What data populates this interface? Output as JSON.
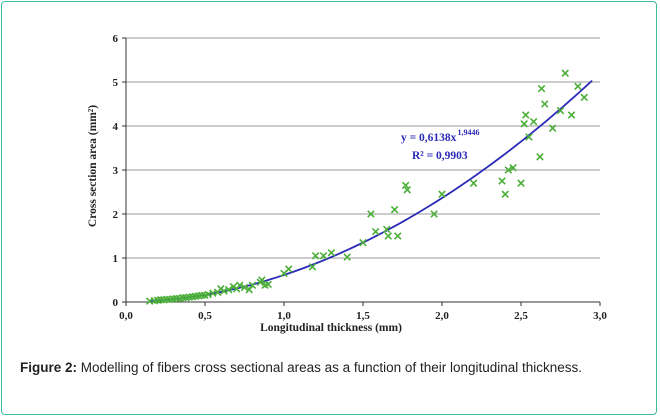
{
  "chart_data": {
    "type": "scatter",
    "xlabel": "Longitudinal thickness (mm)",
    "ylabel": "Cross section area (mm²)",
    "xlim": [
      0,
      3
    ],
    "ylim": [
      0,
      6
    ],
    "x_ticks": [
      "0,0",
      "0,5",
      "1,0",
      "1,5",
      "2,0",
      "2,5",
      "3,0"
    ],
    "y_ticks": [
      "0",
      "1",
      "2",
      "3",
      "4",
      "5",
      "6"
    ],
    "grid": "horizontal",
    "marker_color": "#4caf3a",
    "fit_color": "#2b2bb8",
    "fit": {
      "a": 0.6138,
      "b": 1.9446,
      "x_range": [
        0.15,
        2.95
      ]
    },
    "annotation": {
      "equation": "y = 0,6138x",
      "exponent": "1,9446",
      "r2": "R² = 0,9903"
    },
    "points": [
      [
        0.15,
        0.02
      ],
      [
        0.18,
        0.03
      ],
      [
        0.2,
        0.04
      ],
      [
        0.22,
        0.05
      ],
      [
        0.24,
        0.05
      ],
      [
        0.26,
        0.06
      ],
      [
        0.28,
        0.06
      ],
      [
        0.3,
        0.07
      ],
      [
        0.32,
        0.08
      ],
      [
        0.34,
        0.08
      ],
      [
        0.36,
        0.1
      ],
      [
        0.38,
        0.1
      ],
      [
        0.4,
        0.11
      ],
      [
        0.42,
        0.12
      ],
      [
        0.44,
        0.13
      ],
      [
        0.46,
        0.14
      ],
      [
        0.48,
        0.15
      ],
      [
        0.5,
        0.15
      ],
      [
        0.52,
        0.17
      ],
      [
        0.55,
        0.2
      ],
      [
        0.58,
        0.22
      ],
      [
        0.6,
        0.3
      ],
      [
        0.62,
        0.25
      ],
      [
        0.65,
        0.28
      ],
      [
        0.68,
        0.35
      ],
      [
        0.7,
        0.3
      ],
      [
        0.72,
        0.38
      ],
      [
        0.75,
        0.33
      ],
      [
        0.78,
        0.28
      ],
      [
        0.8,
        0.38
      ],
      [
        0.85,
        0.45
      ],
      [
        0.86,
        0.5
      ],
      [
        0.88,
        0.38
      ],
      [
        0.9,
        0.4
      ],
      [
        1.0,
        0.65
      ],
      [
        1.03,
        0.75
      ],
      [
        1.18,
        0.8
      ],
      [
        1.2,
        1.05
      ],
      [
        1.25,
        1.05
      ],
      [
        1.3,
        1.12
      ],
      [
        1.4,
        1.02
      ],
      [
        1.5,
        1.35
      ],
      [
        1.55,
        2.0
      ],
      [
        1.58,
        1.6
      ],
      [
        1.65,
        1.65
      ],
      [
        1.66,
        1.5
      ],
      [
        1.7,
        2.1
      ],
      [
        1.72,
        1.5
      ],
      [
        1.77,
        2.65
      ],
      [
        1.78,
        2.55
      ],
      [
        1.95,
        2.0
      ],
      [
        2.0,
        2.45
      ],
      [
        2.2,
        2.7
      ],
      [
        2.38,
        2.75
      ],
      [
        2.4,
        2.45
      ],
      [
        2.42,
        3.0
      ],
      [
        2.45,
        3.05
      ],
      [
        2.5,
        2.7
      ],
      [
        2.52,
        4.05
      ],
      [
        2.53,
        4.25
      ],
      [
        2.55,
        3.75
      ],
      [
        2.58,
        4.1
      ],
      [
        2.62,
        3.3
      ],
      [
        2.63,
        4.85
      ],
      [
        2.65,
        4.5
      ],
      [
        2.7,
        3.95
      ],
      [
        2.75,
        4.35
      ],
      [
        2.78,
        5.2
      ],
      [
        2.82,
        4.25
      ],
      [
        2.86,
        4.9
      ],
      [
        2.9,
        4.65
      ]
    ]
  },
  "caption": {
    "label": "Figure 2:",
    "text": " Modelling of fibers cross sectional areas as a function of their longitudinal thickness."
  }
}
